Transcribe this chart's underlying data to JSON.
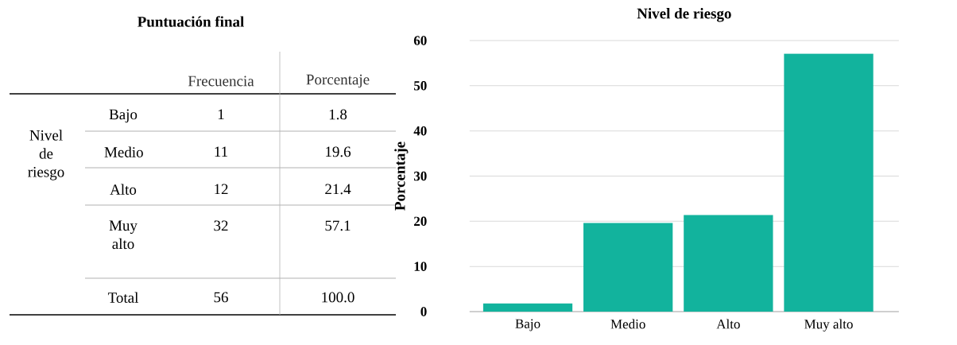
{
  "chart_data": [
    {
      "type": "other",
      "title": "Puntuación final",
      "annotations": [
        "Frecuencia",
        "Porcentaje",
        "Nivel de riesgo",
        "Bajo",
        "1",
        "1.8",
        "Medio",
        "11",
        "19.6",
        "Alto",
        "12",
        "21.4",
        "Muy alto",
        "32",
        "57.1",
        "Total",
        "56",
        "100.0"
      ]
    },
    {
      "type": "bar",
      "title": "Nivel de riesgo",
      "ylabel": "Porcentaje",
      "categories": [
        "Bajo",
        "Medio",
        "Alto",
        "Muy alto"
      ],
      "values": [
        1.8,
        19.6,
        21.4,
        57.1
      ],
      "color": "#12b39d",
      "ylim": [
        0,
        60
      ],
      "yticks": [
        0,
        10,
        20,
        30,
        40,
        50,
        60
      ],
      "grid": "y"
    }
  ]
}
